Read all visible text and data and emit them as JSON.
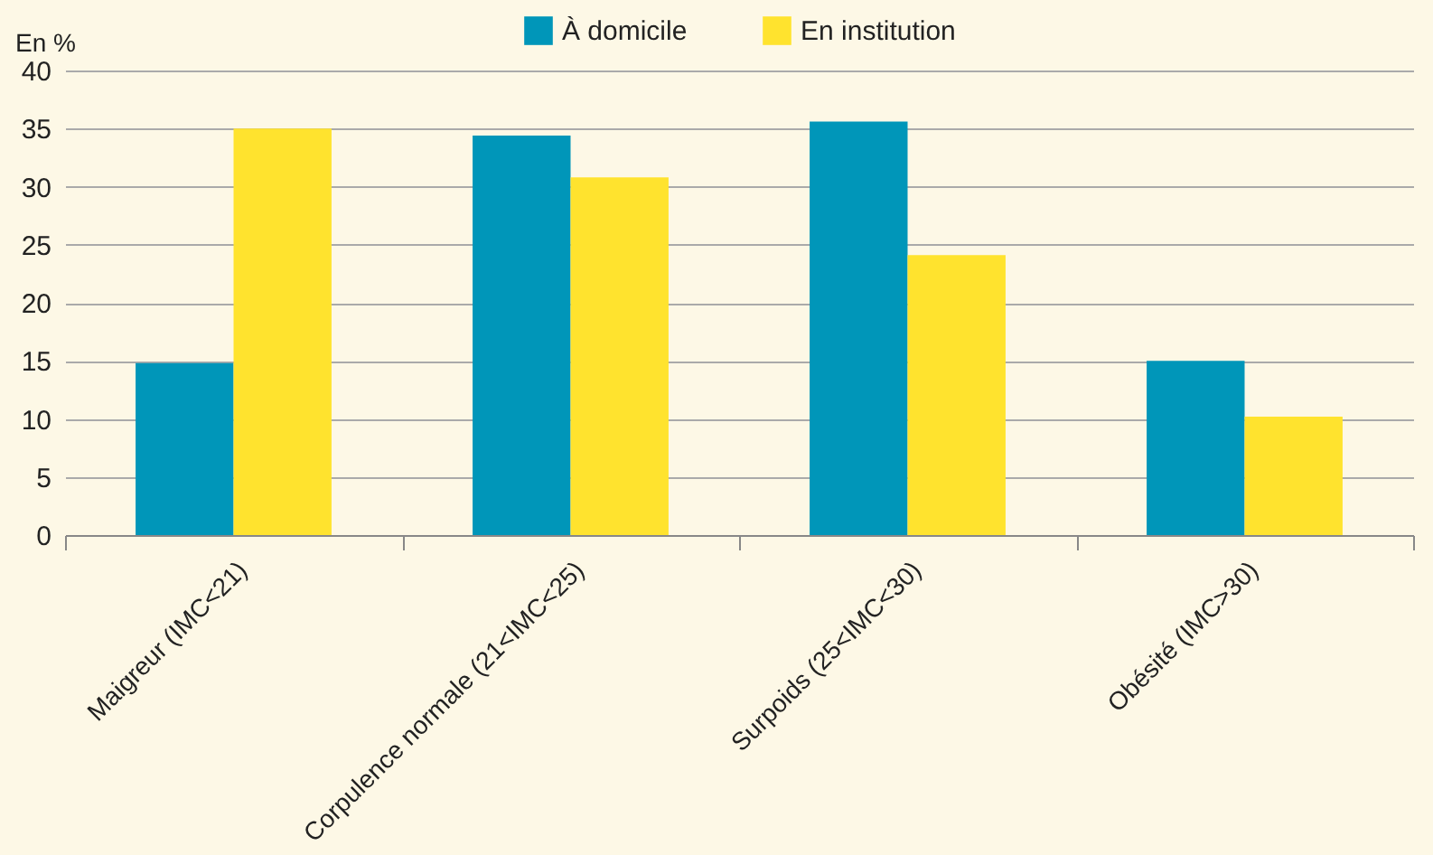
{
  "chart_data": {
    "type": "bar",
    "ylabel": "En %",
    "categories": [
      "Maigreur (IMC<21)",
      "Corpulence normale (21<IMC<25)",
      "Surpoids (25<IMC<30)",
      "Obésité (IMC>30)"
    ],
    "series": [
      {
        "name": "À domicile",
        "color": "#0096b9",
        "values": [
          14.8,
          34.4,
          35.6,
          15.0
        ]
      },
      {
        "name": "En institution",
        "color": "#ffe32e",
        "values": [
          35.0,
          30.8,
          24.1,
          10.2
        ]
      }
    ],
    "ylim": [
      0,
      40
    ],
    "yticks": [
      0,
      5,
      10,
      15,
      20,
      25,
      30,
      35,
      40
    ],
    "grid": "y",
    "legend": "top"
  }
}
